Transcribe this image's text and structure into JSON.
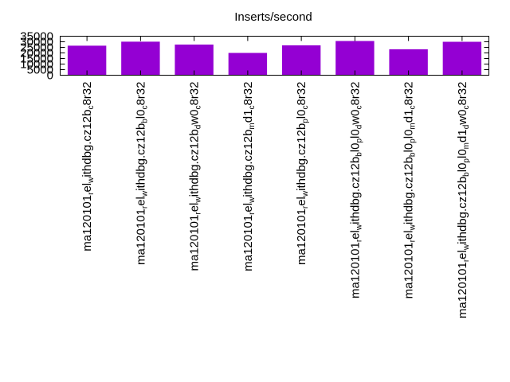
{
  "chart_data": {
    "type": "bar",
    "title": "Inserts/second",
    "xlabel": "",
    "ylabel": "",
    "ylim": [
      0,
      35000
    ],
    "yticks": [
      0,
      5000,
      10000,
      15000,
      20000,
      25000,
      30000,
      35000
    ],
    "grid": false,
    "legend": "none",
    "bar_color": "#9400d3",
    "categories": [
      "ma120101_rel_withdbg.cz12b_c8r32",
      "ma120101_rel_withdbg.cz12b_bl0_c8r32",
      "ma120101_rel_withdbg.cz12b_dw0_c8r32",
      "ma120101_rel_withdbg.cz12b_md1_c8r32",
      "ma120101_rel_withdbg.cz12b_pl0_c8r32",
      "ma120101_rel_withdbg.cz12b_bl0_pl0_dw0_c8r32",
      "ma120101_rel_withdbg.cz12b_bl0_pl0_md1_c8r32",
      "ma120101_rel_withdbg.cz12b_bl0_pl0_md1_dw0_c8r32"
    ],
    "category_labels": [
      [
        {
          "t": "ma120101"
        },
        {
          "t": "r",
          "sub": true
        },
        {
          "t": "el"
        },
        {
          "t": "w",
          "sub": true
        },
        {
          "t": "ithdbg.cz12b"
        },
        {
          "t": "c",
          "sub": true
        },
        {
          "t": "8r32"
        }
      ],
      [
        {
          "t": "ma120101"
        },
        {
          "t": "r",
          "sub": true
        },
        {
          "t": "el"
        },
        {
          "t": "w",
          "sub": true
        },
        {
          "t": "ithdbg.cz12b"
        },
        {
          "t": "b",
          "sub": true
        },
        {
          "t": "l0"
        },
        {
          "t": "c",
          "sub": true
        },
        {
          "t": "8r32"
        }
      ],
      [
        {
          "t": "ma120101"
        },
        {
          "t": "r",
          "sub": true
        },
        {
          "t": "el"
        },
        {
          "t": "w",
          "sub": true
        },
        {
          "t": "ithdbg.cz12b"
        },
        {
          "t": "d",
          "sub": true
        },
        {
          "t": "w0"
        },
        {
          "t": "c",
          "sub": true
        },
        {
          "t": "8r32"
        }
      ],
      [
        {
          "t": "ma120101"
        },
        {
          "t": "r",
          "sub": true
        },
        {
          "t": "el"
        },
        {
          "t": "w",
          "sub": true
        },
        {
          "t": "ithdbg.cz12b"
        },
        {
          "t": "m",
          "sub": true
        },
        {
          "t": "d1"
        },
        {
          "t": "c",
          "sub": true
        },
        {
          "t": "8r32"
        }
      ],
      [
        {
          "t": "ma120101"
        },
        {
          "t": "r",
          "sub": true
        },
        {
          "t": "el"
        },
        {
          "t": "w",
          "sub": true
        },
        {
          "t": "ithdbg.cz12b"
        },
        {
          "t": "p",
          "sub": true
        },
        {
          "t": "l0"
        },
        {
          "t": "c",
          "sub": true
        },
        {
          "t": "8r32"
        }
      ],
      [
        {
          "t": "ma120101"
        },
        {
          "t": "r",
          "sub": true
        },
        {
          "t": "el"
        },
        {
          "t": "w",
          "sub": true
        },
        {
          "t": "ithdbg.cz12b"
        },
        {
          "t": "b",
          "sub": true
        },
        {
          "t": "l0"
        },
        {
          "t": "p",
          "sub": true
        },
        {
          "t": "l0"
        },
        {
          "t": "d",
          "sub": true
        },
        {
          "t": "w0"
        },
        {
          "t": "c",
          "sub": true
        },
        {
          "t": "8r32"
        }
      ],
      [
        {
          "t": "ma120101"
        },
        {
          "t": "r",
          "sub": true
        },
        {
          "t": "el"
        },
        {
          "t": "w",
          "sub": true
        },
        {
          "t": "ithdbg.cz12b"
        },
        {
          "t": "b",
          "sub": true
        },
        {
          "t": "l0"
        },
        {
          "t": "p",
          "sub": true
        },
        {
          "t": "l0"
        },
        {
          "t": "m",
          "sub": true
        },
        {
          "t": "d1"
        },
        {
          "t": "c",
          "sub": true
        },
        {
          "t": "8r32"
        }
      ],
      [
        {
          "t": "ma120101"
        },
        {
          "t": "r",
          "sub": true
        },
        {
          "t": "el"
        },
        {
          "t": "w",
          "sub": true
        },
        {
          "t": "ithdbg.cz12b"
        },
        {
          "t": "b",
          "sub": true
        },
        {
          "t": "l0"
        },
        {
          "t": "p",
          "sub": true
        },
        {
          "t": "l0"
        },
        {
          "t": "m",
          "sub": true
        },
        {
          "t": "d1"
        },
        {
          "t": "d",
          "sub": true
        },
        {
          "t": "w0"
        },
        {
          "t": "c",
          "sub": true
        },
        {
          "t": "8r32"
        }
      ]
    ],
    "values": [
      26500,
      30100,
      27500,
      20000,
      26800,
      30700,
      23300,
      30000
    ]
  }
}
